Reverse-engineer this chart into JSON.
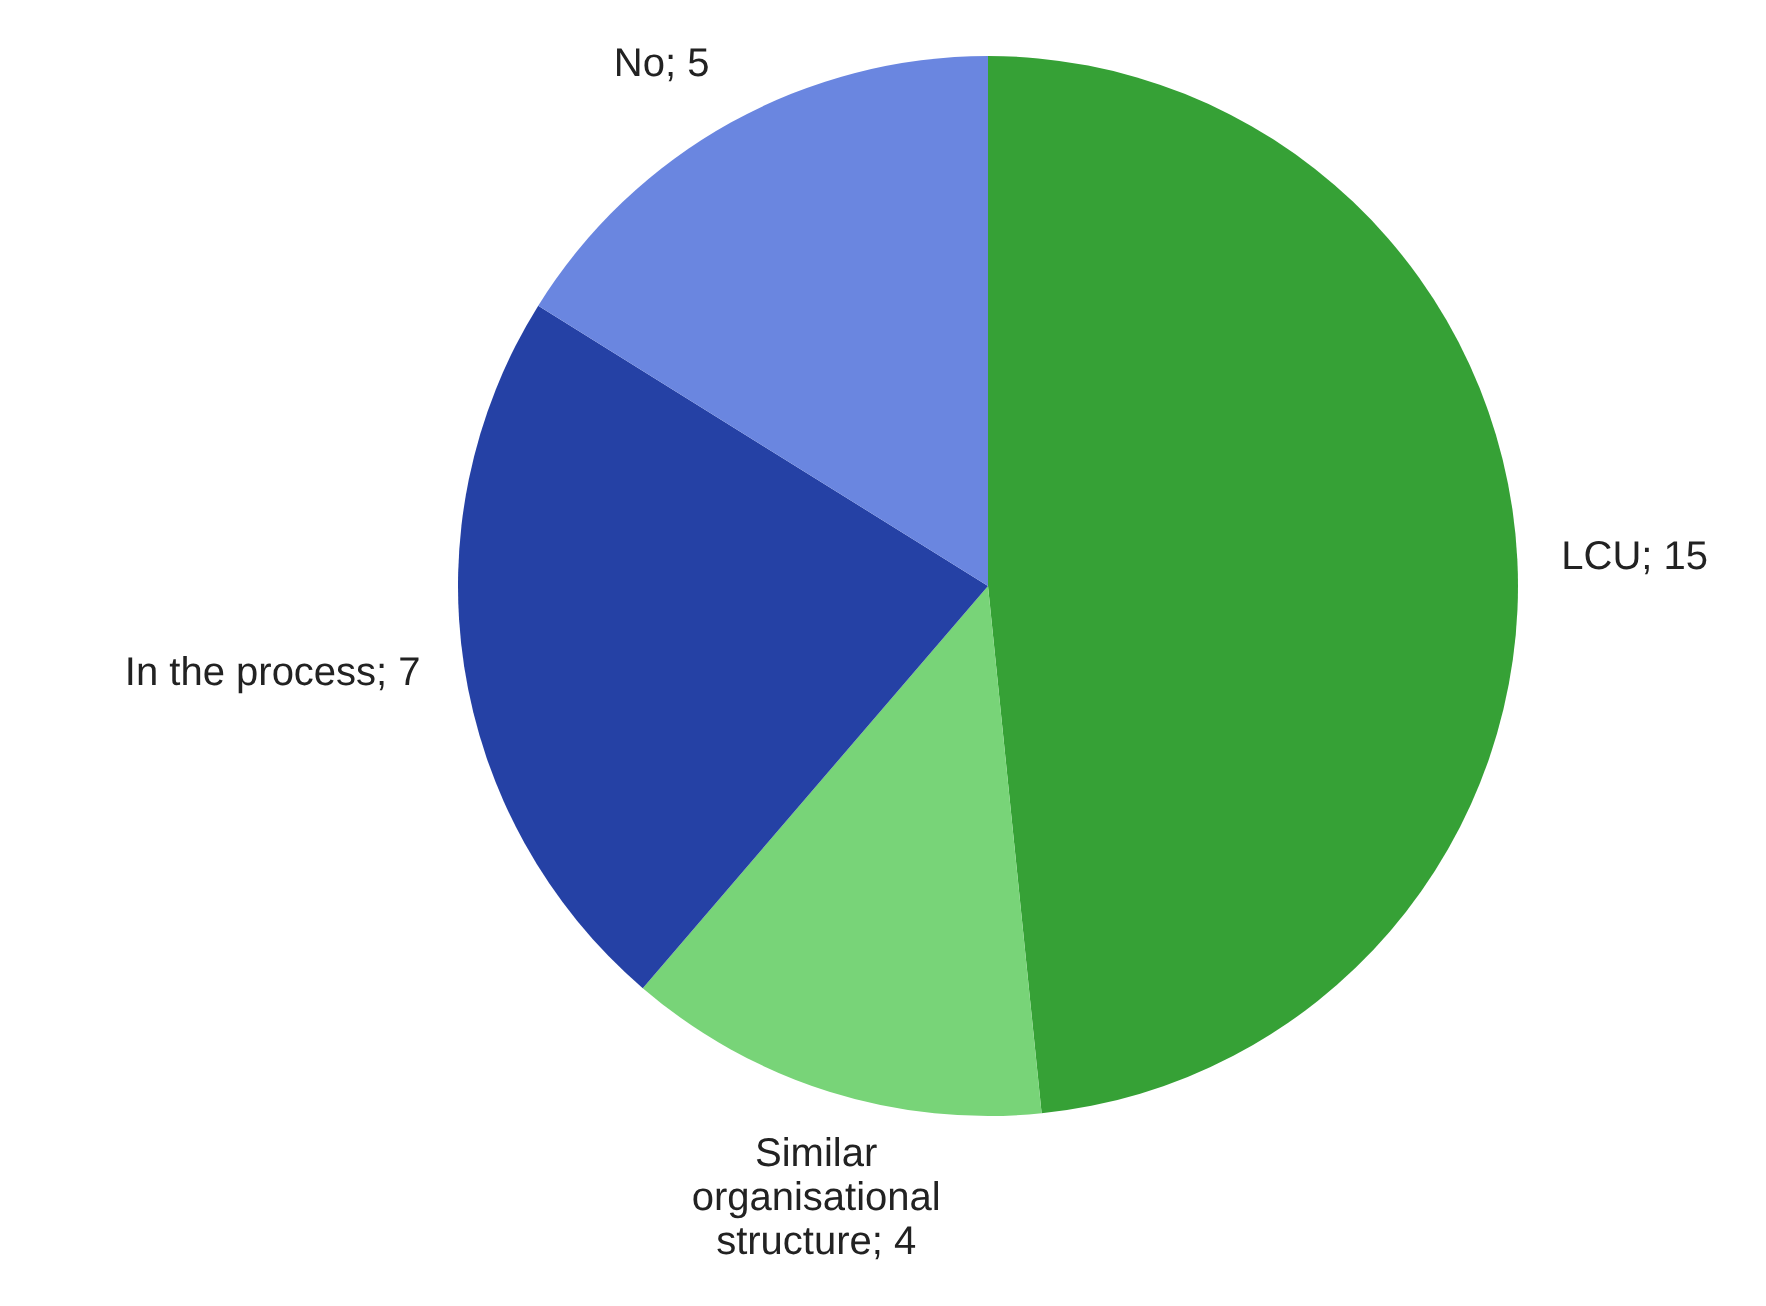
{
  "chart_data": {
    "type": "pie",
    "categories": [
      "LCU",
      "Similar organisational structure",
      "In the process",
      "No"
    ],
    "values": [
      15,
      4,
      7,
      5
    ],
    "value_labels": [
      "; 15",
      "; 4",
      "; 7",
      "; 5"
    ],
    "colors": [
      "#36a136",
      "#78d478",
      "#2541a5",
      "#6a86e0"
    ]
  }
}
